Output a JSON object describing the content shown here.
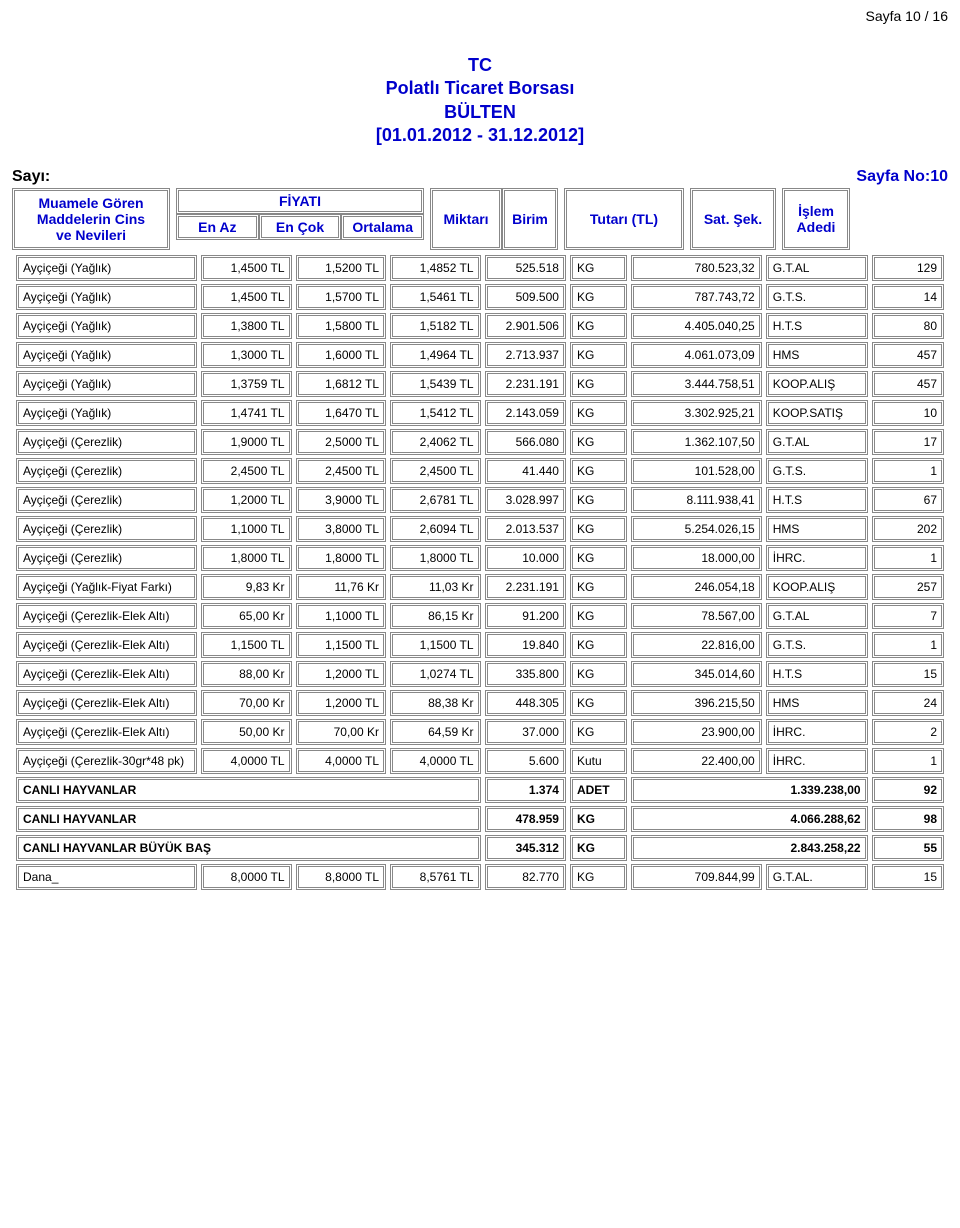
{
  "page_top": "Sayfa 10 / 16",
  "title_lines": [
    "TC",
    "Polatlı Ticaret Borsası",
    "BÜLTEN",
    "[01.01.2012 - 31.12.2012]"
  ],
  "sayi_label": "Sayı:",
  "page_no_label": "Sayfa No:10",
  "headers": {
    "col1_l1": "Muamele Gören",
    "col1_l2": "Maddelerin Cins",
    "col1_l3": "ve Nevileri",
    "fiyat": "FİYATI",
    "en_az": "En Az",
    "en_cok": "En Çok",
    "ortalama": "Ortalama",
    "miktar": "Miktarı",
    "birim": "Birim",
    "tutar": "Tutarı (TL)",
    "sat": "Sat. Şek.",
    "islem_l1": "İşlem",
    "islem_l2": "Adedi"
  },
  "rows": [
    {
      "name": "Ayçiçeği (Yağlık)",
      "min": "1,4500 TL",
      "max": "1,5200 TL",
      "avg": "1,4852 TL",
      "miktar": "525.518",
      "birim": "KG",
      "tutar": "780.523,32",
      "sat": "G.T.AL",
      "islem": "129"
    },
    {
      "name": "Ayçiçeği (Yağlık)",
      "min": "1,4500 TL",
      "max": "1,5700 TL",
      "avg": "1,5461 TL",
      "miktar": "509.500",
      "birim": "KG",
      "tutar": "787.743,72",
      "sat": "G.T.S.",
      "islem": "14"
    },
    {
      "name": "Ayçiçeği (Yağlık)",
      "min": "1,3800 TL",
      "max": "1,5800 TL",
      "avg": "1,5182 TL",
      "miktar": "2.901.506",
      "birim": "KG",
      "tutar": "4.405.040,25",
      "sat": "H.T.S",
      "islem": "80"
    },
    {
      "name": "Ayçiçeği (Yağlık)",
      "min": "1,3000 TL",
      "max": "1,6000 TL",
      "avg": "1,4964 TL",
      "miktar": "2.713.937",
      "birim": "KG",
      "tutar": "4.061.073,09",
      "sat": "HMS",
      "islem": "457"
    },
    {
      "name": "Ayçiçeği (Yağlık)",
      "min": "1,3759 TL",
      "max": "1,6812 TL",
      "avg": "1,5439 TL",
      "miktar": "2.231.191",
      "birim": "KG",
      "tutar": "3.444.758,51",
      "sat": "KOOP.ALIŞ",
      "islem": "457"
    },
    {
      "name": "Ayçiçeği (Yağlık)",
      "min": "1,4741 TL",
      "max": "1,6470 TL",
      "avg": "1,5412 TL",
      "miktar": "2.143.059",
      "birim": "KG",
      "tutar": "3.302.925,21",
      "sat": "KOOP.SATIŞ",
      "islem": "10"
    },
    {
      "name": "Ayçiçeği (Çerezlik)",
      "min": "1,9000 TL",
      "max": "2,5000 TL",
      "avg": "2,4062 TL",
      "miktar": "566.080",
      "birim": "KG",
      "tutar": "1.362.107,50",
      "sat": "G.T.AL",
      "islem": "17"
    },
    {
      "name": "Ayçiçeği (Çerezlik)",
      "min": "2,4500 TL",
      "max": "2,4500 TL",
      "avg": "2,4500 TL",
      "miktar": "41.440",
      "birim": "KG",
      "tutar": "101.528,00",
      "sat": "G.T.S.",
      "islem": "1"
    },
    {
      "name": "Ayçiçeği (Çerezlik)",
      "min": "1,2000 TL",
      "max": "3,9000 TL",
      "avg": "2,6781 TL",
      "miktar": "3.028.997",
      "birim": "KG",
      "tutar": "8.111.938,41",
      "sat": "H.T.S",
      "islem": "67"
    },
    {
      "name": "Ayçiçeği (Çerezlik)",
      "min": "1,1000 TL",
      "max": "3,8000 TL",
      "avg": "2,6094 TL",
      "miktar": "2.013.537",
      "birim": "KG",
      "tutar": "5.254.026,15",
      "sat": "HMS",
      "islem": "202"
    },
    {
      "name": "Ayçiçeği (Çerezlik)",
      "min": "1,8000 TL",
      "max": "1,8000 TL",
      "avg": "1,8000 TL",
      "miktar": "10.000",
      "birim": "KG",
      "tutar": "18.000,00",
      "sat": "İHRC.",
      "islem": "1"
    },
    {
      "name": "Ayçiçeği (Yağlık-Fiyat Farkı)",
      "min": "9,83 Kr",
      "max": "11,76 Kr",
      "avg": "11,03 Kr",
      "miktar": "2.231.191",
      "birim": "KG",
      "tutar": "246.054,18",
      "sat": "KOOP.ALIŞ",
      "islem": "257"
    },
    {
      "name": "Ayçiçeği (Çerezlik-Elek Altı)",
      "min": "65,00 Kr",
      "max": "1,1000 TL",
      "avg": "86,15 Kr",
      "miktar": "91.200",
      "birim": "KG",
      "tutar": "78.567,00",
      "sat": "G.T.AL",
      "islem": "7"
    },
    {
      "name": "Ayçiçeği (Çerezlik-Elek Altı)",
      "min": "1,1500 TL",
      "max": "1,1500 TL",
      "avg": "1,1500 TL",
      "miktar": "19.840",
      "birim": "KG",
      "tutar": "22.816,00",
      "sat": "G.T.S.",
      "islem": "1"
    },
    {
      "name": "Ayçiçeği (Çerezlik-Elek Altı)",
      "min": "88,00 Kr",
      "max": "1,2000 TL",
      "avg": "1,0274 TL",
      "miktar": "335.800",
      "birim": "KG",
      "tutar": "345.014,60",
      "sat": "H.T.S",
      "islem": "15"
    },
    {
      "name": "Ayçiçeği (Çerezlik-Elek Altı)",
      "min": "70,00 Kr",
      "max": "1,2000 TL",
      "avg": "88,38 Kr",
      "miktar": "448.305",
      "birim": "KG",
      "tutar": "396.215,50",
      "sat": "HMS",
      "islem": "24"
    },
    {
      "name": "Ayçiçeği (Çerezlik-Elek Altı)",
      "min": "50,00 Kr",
      "max": "70,00 Kr",
      "avg": "64,59 Kr",
      "miktar": "37.000",
      "birim": "KG",
      "tutar": "23.900,00",
      "sat": "İHRC.",
      "islem": "2"
    },
    {
      "name": "Ayçiçeği (Çerezlik-30gr*48 pk)",
      "min": "4,0000 TL",
      "max": "4,0000 TL",
      "avg": "4,0000 TL",
      "miktar": "5.600",
      "birim": "Kutu",
      "tutar": "22.400,00",
      "sat": "İHRC.",
      "islem": "1"
    },
    {
      "name": "CANLI HAYVANLAR",
      "min": "",
      "max": "",
      "avg": "",
      "miktar": "1.374",
      "birim": "ADET",
      "tutar": "1.339.238,00",
      "sat": "",
      "islem": "92",
      "bold": true,
      "merge": true
    },
    {
      "name": "CANLI HAYVANLAR",
      "min": "",
      "max": "",
      "avg": "",
      "miktar": "478.959",
      "birim": "KG",
      "tutar": "4.066.288,62",
      "sat": "",
      "islem": "98",
      "bold": true,
      "merge": true
    },
    {
      "name": "CANLI HAYVANLAR BÜYÜK BAŞ",
      "min": "",
      "max": "",
      "avg": "",
      "miktar": "345.312",
      "birim": "KG",
      "tutar": "2.843.258,22",
      "sat": "",
      "islem": "55",
      "bold": true,
      "merge": true
    },
    {
      "name": "Dana_",
      "min": "8,0000 TL",
      "max": "8,8000 TL",
      "avg": "8,5761 TL",
      "miktar": "82.770",
      "birim": "KG",
      "tutar": "709.844,99",
      "sat": "G.T.AL.",
      "islem": "15"
    }
  ]
}
